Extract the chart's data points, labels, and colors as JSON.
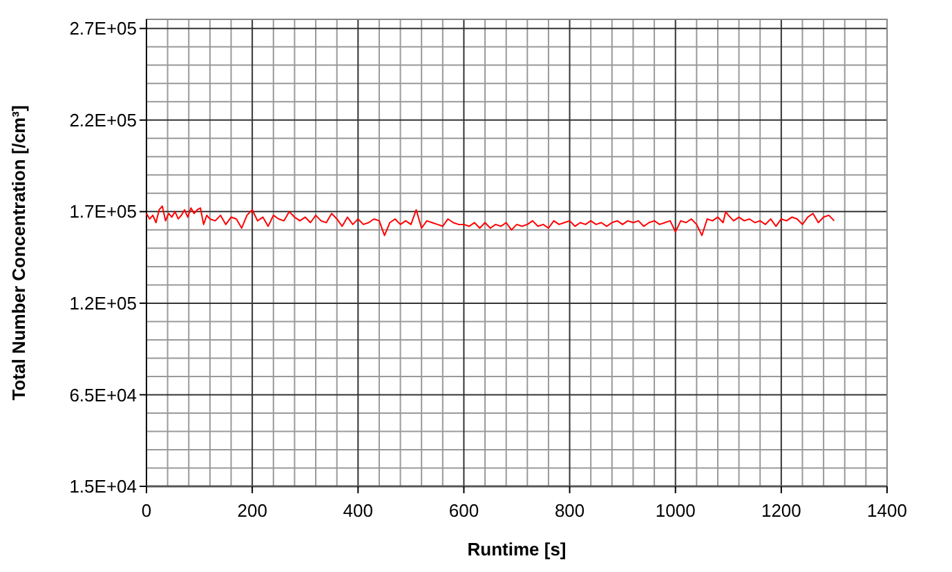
{
  "chart_data": {
    "type": "line",
    "xlabel": "Runtime [s]",
    "ylabel": "Total Number Concentration [/cm³]",
    "xlim": [
      0,
      1400
    ],
    "xticks": [
      0,
      200,
      400,
      600,
      800,
      1000,
      1200,
      1400
    ],
    "ylim": [
      15000,
      270000
    ],
    "yticks": [
      {
        "value": 15000,
        "label": "1.5E+04"
      },
      {
        "value": 65000,
        "label": "6.5E+04"
      },
      {
        "value": 115000,
        "label": "1.2E+05"
      },
      {
        "value": 165000,
        "label": "1.7E+05"
      },
      {
        "value": 215000,
        "label": "2.2E+05"
      },
      {
        "value": 265000,
        "label": "2.7E+05"
      }
    ],
    "grid": true,
    "marker": "none",
    "line_style": "solid",
    "series": [
      {
        "color": "#ff0000",
        "x": [
          0,
          6,
          12,
          18,
          24,
          30,
          36,
          42,
          48,
          54,
          60,
          66,
          72,
          78,
          84,
          90,
          96,
          102,
          108,
          114,
          120,
          130,
          140,
          150,
          160,
          170,
          180,
          190,
          200,
          210,
          220,
          230,
          240,
          250,
          260,
          270,
          280,
          290,
          300,
          310,
          320,
          330,
          340,
          350,
          360,
          370,
          380,
          390,
          400,
          410,
          420,
          430,
          440,
          450,
          460,
          470,
          480,
          490,
          500,
          510,
          520,
          530,
          540,
          550,
          560,
          570,
          580,
          590,
          600,
          610,
          620,
          630,
          640,
          650,
          660,
          670,
          680,
          690,
          700,
          710,
          720,
          730,
          740,
          750,
          760,
          770,
          780,
          790,
          800,
          810,
          820,
          830,
          840,
          850,
          860,
          870,
          880,
          890,
          900,
          910,
          920,
          930,
          940,
          950,
          960,
          970,
          980,
          990,
          1000,
          1010,
          1020,
          1030,
          1040,
          1050,
          1060,
          1070,
          1080,
          1090,
          1095,
          1100,
          1110,
          1120,
          1130,
          1140,
          1150,
          1160,
          1170,
          1180,
          1190,
          1200,
          1210,
          1220,
          1230,
          1240,
          1250,
          1260,
          1270,
          1280,
          1290,
          1300
        ],
        "values": [
          164000,
          161000,
          163000,
          159000,
          166000,
          168000,
          160000,
          164000,
          162000,
          165000,
          161000,
          163000,
          166000,
          162000,
          167000,
          164000,
          166000,
          167000,
          158000,
          163000,
          161000,
          160000,
          163000,
          158000,
          162000,
          161000,
          156000,
          163000,
          166000,
          160000,
          162000,
          157000,
          163000,
          161000,
          160000,
          165000,
          162000,
          160000,
          162000,
          159000,
          163000,
          160000,
          159000,
          164000,
          161000,
          157000,
          162000,
          158000,
          161000,
          158000,
          159000,
          161000,
          160000,
          152000,
          159000,
          161000,
          158000,
          160000,
          158000,
          166000,
          156000,
          160000,
          159000,
          158000,
          157000,
          161000,
          159000,
          158000,
          158000,
          157000,
          159000,
          156000,
          159000,
          156000,
          158000,
          157000,
          159000,
          155000,
          158000,
          157000,
          158000,
          160000,
          157000,
          158000,
          156000,
          160000,
          158000,
          159000,
          160000,
          157000,
          159000,
          158000,
          160000,
          158000,
          159000,
          157000,
          159000,
          160000,
          158000,
          160000,
          159000,
          160000,
          157000,
          159000,
          160000,
          158000,
          159000,
          160000,
          154000,
          160000,
          159000,
          161000,
          158000,
          152000,
          161000,
          160000,
          162000,
          159000,
          165000,
          163000,
          160000,
          162000,
          160000,
          161000,
          159000,
          160000,
          158000,
          161000,
          157000,
          161000,
          160000,
          162000,
          161000,
          158000,
          162000,
          164000,
          159000,
          162000,
          163000,
          160000
        ]
      }
    ]
  }
}
